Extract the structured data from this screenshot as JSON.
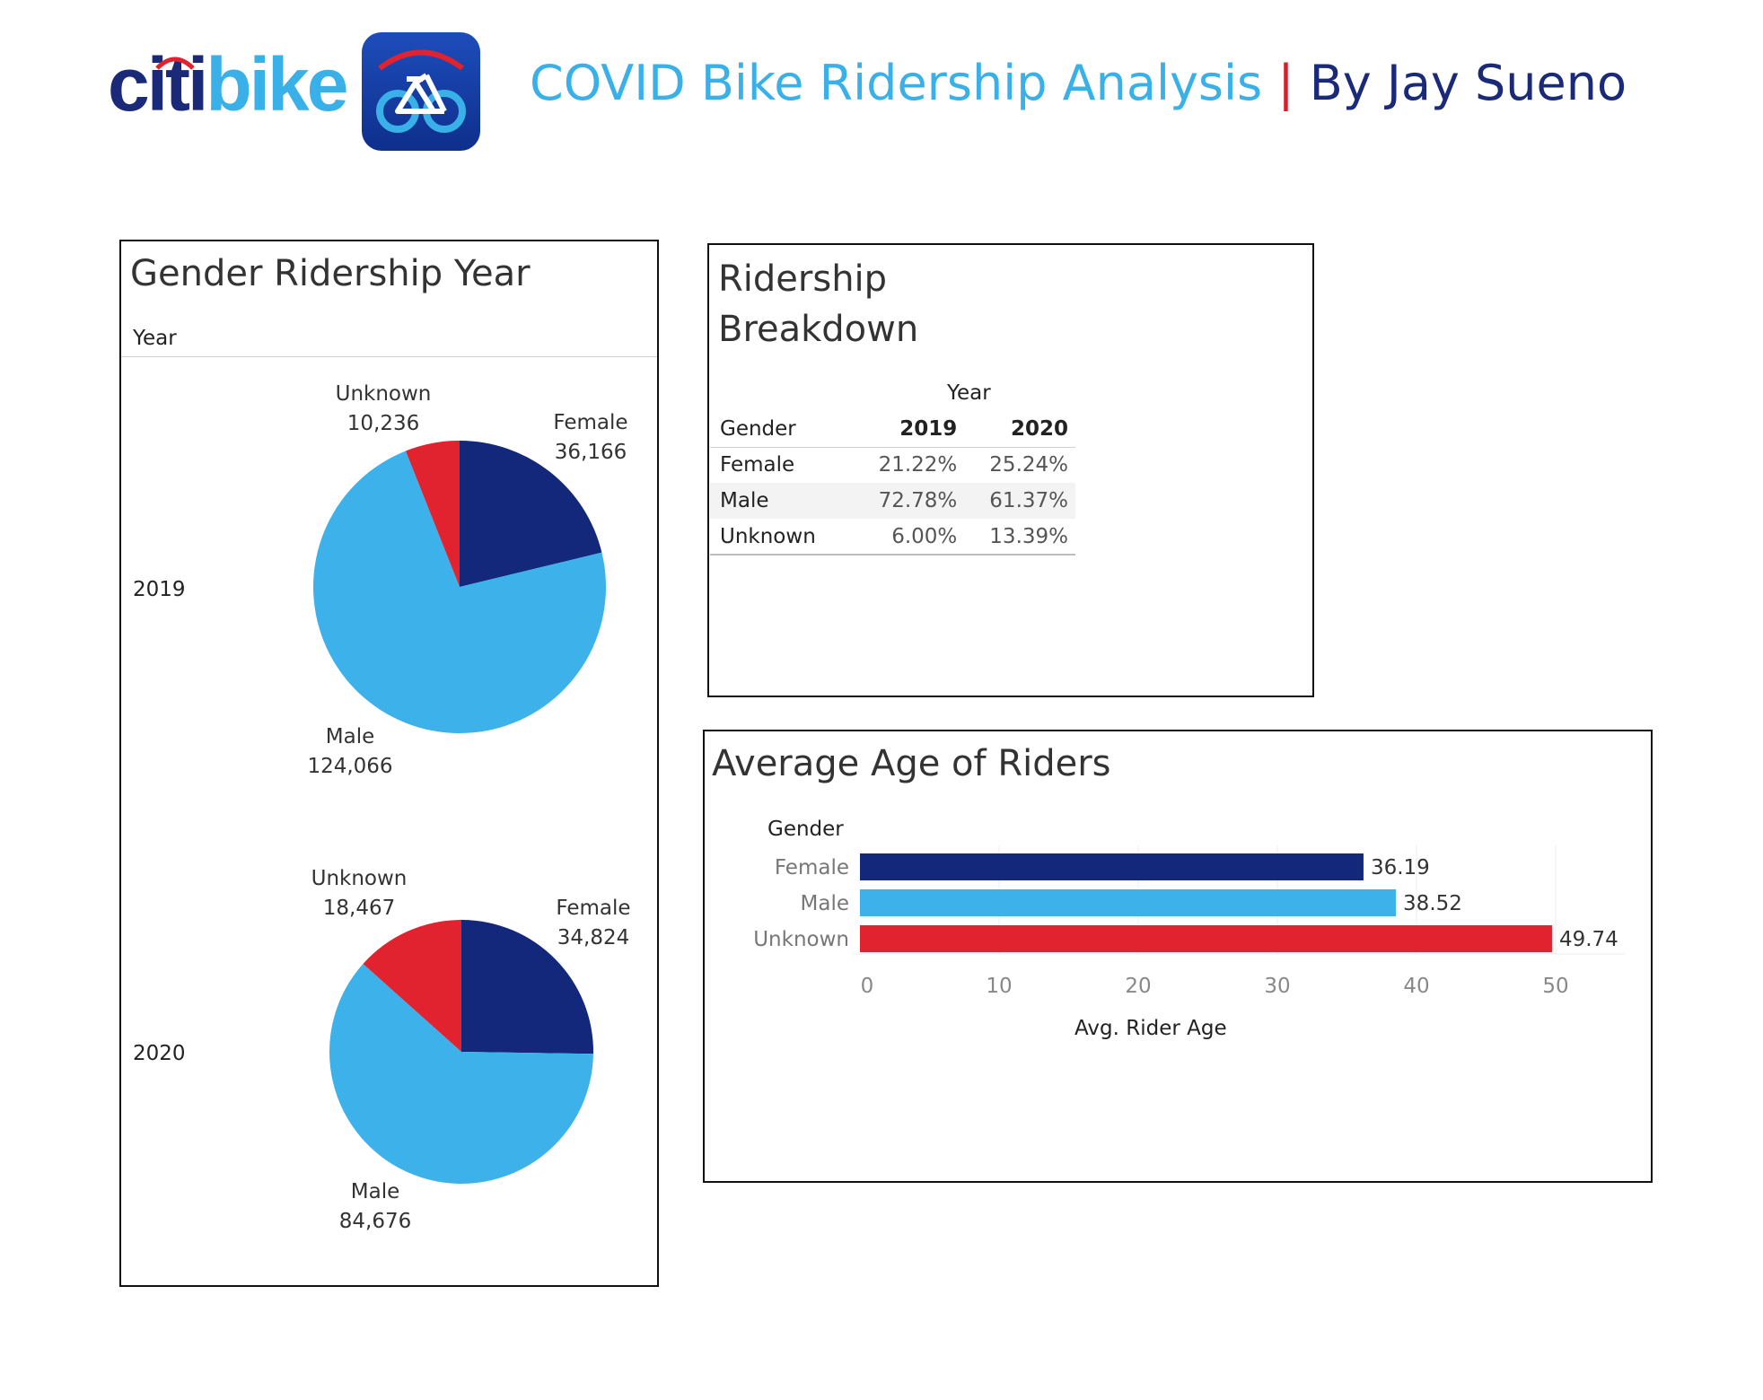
{
  "header": {
    "logo": {
      "part1": "citi",
      "part2": "bike"
    },
    "title": "COVID Bike Ridership Analysis",
    "separator": "|",
    "author": "By Jay Sueno"
  },
  "colors": {
    "female": "#13287a",
    "male": "#3db1ea",
    "unknown": "#e0232e"
  },
  "icons": [
    "citibike-logo",
    "bike-app-icon"
  ],
  "chart_data": [
    {
      "type": "pie",
      "title": "Gender Ridership Year",
      "facet_label": "Year",
      "facets": [
        {
          "label": "2019",
          "slices": [
            {
              "name": "Female",
              "value": 36166,
              "value_label": "36,166"
            },
            {
              "name": "Male",
              "value": 124066,
              "value_label": "124,066"
            },
            {
              "name": "Unknown",
              "value": 10236,
              "value_label": "10,236"
            }
          ]
        },
        {
          "label": "2020",
          "slices": [
            {
              "name": "Female",
              "value": 34824,
              "value_label": "34,824"
            },
            {
              "name": "Male",
              "value": 84676,
              "value_label": "84,676"
            },
            {
              "name": "Unknown",
              "value": 18467,
              "value_label": "18,467"
            }
          ]
        }
      ]
    },
    {
      "type": "table",
      "title_line1": "Ridership",
      "title_line2": "Breakdown",
      "column_group": "Year",
      "row_header": "Gender",
      "columns": [
        "2019",
        "2020"
      ],
      "rows": [
        {
          "label": "Female",
          "values": [
            "21.22%",
            "25.24%"
          ]
        },
        {
          "label": "Male",
          "values": [
            "72.78%",
            "61.37%"
          ]
        },
        {
          "label": "Unknown",
          "values": [
            "6.00%",
            "13.39%"
          ]
        }
      ]
    },
    {
      "type": "bar",
      "orientation": "horizontal",
      "title": "Average Age of Riders",
      "category_header": "Gender",
      "categories": [
        "Female",
        "Male",
        "Unknown"
      ],
      "values": [
        36.19,
        38.52,
        49.74
      ],
      "value_labels": [
        "36.19",
        "38.52",
        "49.74"
      ],
      "xlabel": "Avg. Rider Age",
      "xticks": [
        "0",
        "10",
        "20",
        "30",
        "40",
        "50"
      ],
      "xlim": [
        0,
        55
      ],
      "grid": true
    }
  ]
}
